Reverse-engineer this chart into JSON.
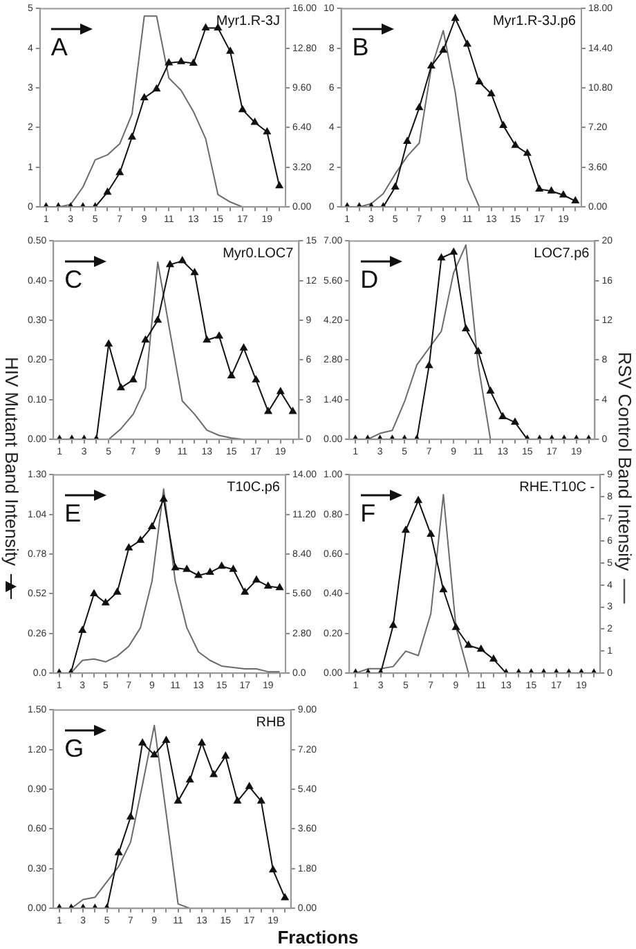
{
  "chart_data": [
    {
      "type": "line",
      "title": "Myr1.R-3J",
      "annotations": [
        "A"
      ],
      "x": [
        1,
        2,
        3,
        4,
        5,
        6,
        7,
        8,
        9,
        10,
        11,
        12,
        13,
        14,
        15,
        16,
        17,
        18,
        19,
        20
      ],
      "xlim": [
        0.5,
        20.5
      ],
      "xticks": [
        1,
        {
          "value": 2,
          "label": null
        },
        3,
        {
          "value": 4,
          "label": null
        },
        5,
        {
          "value": 6,
          "label": null
        },
        7,
        {
          "value": 8,
          "label": null
        },
        9,
        {
          "value": 10,
          "label": null
        },
        11,
        {
          "value": 12,
          "label": null
        },
        13,
        {
          "value": 14,
          "label": null
        },
        15,
        {
          "value": 16,
          "label": null
        },
        17,
        {
          "value": 18,
          "label": null
        },
        19,
        {
          "value": 20,
          "label": null
        }
      ],
      "ylim": [
        0,
        5
      ],
      "yticks": [
        0,
        1,
        2,
        3,
        4,
        5
      ],
      "y2lim": [
        0,
        16
      ],
      "y2ticks": [
        {
          "value": 0,
          "label": "0.00"
        },
        {
          "value": 3.2,
          "label": "3.20"
        },
        {
          "value": 6.4,
          "label": "6.40"
        },
        {
          "value": 9.6,
          "label": "9.60"
        },
        {
          "value": 12.8,
          "label": "12.80"
        },
        {
          "value": 16,
          "label": "16.00"
        }
      ],
      "grid": false,
      "legend": false,
      "series": [
        {
          "color": "#111111",
          "marker": "triangle",
          "values": [
            0,
            0,
            0,
            0,
            0,
            0.37,
            0.86,
            1.76,
            2.75,
            2.97,
            3.63,
            3.66,
            3.62,
            4.51,
            4.51,
            3.92,
            2.45,
            2.13,
            1.89,
            0.53
          ]
        },
        {
          "color": "#6a6a6a",
          "marker": "none",
          "axis": "y2",
          "values": [
            0,
            0,
            0.2,
            1.6,
            3.8,
            4.2,
            5.1,
            7.5,
            15.4,
            15.4,
            10.4,
            9.4,
            7.7,
            5.5,
            1.0,
            0.4,
            0,
            null,
            null,
            null
          ]
        }
      ]
    },
    {
      "type": "line",
      "title": "Myr1.R-3J.p6",
      "annotations": [
        "B"
      ],
      "x": [
        1,
        2,
        3,
        4,
        5,
        6,
        7,
        8,
        9,
        10,
        11,
        12,
        13,
        14,
        15,
        16,
        17,
        18,
        19,
        20
      ],
      "xlim": [
        0.5,
        20.5
      ],
      "xticks": [
        1,
        {
          "value": 2,
          "label": null
        },
        3,
        {
          "value": 4,
          "label": null
        },
        5,
        {
          "value": 6,
          "label": null
        },
        7,
        {
          "value": 8,
          "label": null
        },
        9,
        {
          "value": 10,
          "label": null
        },
        11,
        {
          "value": 12,
          "label": null
        },
        13,
        {
          "value": 14,
          "label": null
        },
        15,
        {
          "value": 16,
          "label": null
        },
        17,
        {
          "value": 18,
          "label": null
        },
        19,
        {
          "value": 20,
          "label": null
        }
      ],
      "ylim": [
        0,
        10
      ],
      "yticks": [
        0,
        2,
        4,
        6,
        8,
        10
      ],
      "y2lim": [
        0,
        18
      ],
      "y2ticks": [
        {
          "value": 0,
          "label": "0.00"
        },
        {
          "value": 3.6,
          "label": "3.60"
        },
        {
          "value": 7.2,
          "label": "7.20"
        },
        {
          "value": 10.8,
          "label": "10.80"
        },
        {
          "value": 14.4,
          "label": "14.40"
        },
        {
          "value": 18,
          "label": "18.00"
        }
      ],
      "grid": false,
      "legend": false,
      "series": [
        {
          "color": "#111111",
          "marker": "triangle",
          "values": [
            0,
            0,
            0,
            0,
            1.0,
            3.3,
            5.0,
            7.1,
            7.9,
            9.5,
            8.2,
            6.3,
            5.7,
            4.1,
            3.1,
            2.7,
            0.9,
            0.8,
            0.6,
            0.3
          ]
        },
        {
          "color": "#6a6a6a",
          "marker": "none",
          "axis": "y2",
          "values": [
            0,
            0,
            0.3,
            1.2,
            3.0,
            4.6,
            5.8,
            12.6,
            16.0,
            10.4,
            2.5,
            0,
            null,
            null,
            null,
            null,
            null,
            null,
            null,
            null
          ]
        }
      ]
    },
    {
      "type": "line",
      "title": "Myr0.LOC7",
      "annotations": [
        "C"
      ],
      "x": [
        1,
        2,
        3,
        4,
        5,
        6,
        7,
        8,
        9,
        10,
        11,
        12,
        13,
        14,
        15,
        16,
        17,
        18,
        19,
        20
      ],
      "xlim": [
        0.5,
        20.5
      ],
      "xticks": [
        1,
        {
          "value": 2,
          "label": null
        },
        3,
        {
          "value": 4,
          "label": null
        },
        5,
        {
          "value": 6,
          "label": null
        },
        7,
        {
          "value": 8,
          "label": null
        },
        9,
        {
          "value": 10,
          "label": null
        },
        11,
        {
          "value": 12,
          "label": null
        },
        13,
        {
          "value": 14,
          "label": null
        },
        15,
        {
          "value": 16,
          "label": null
        },
        17,
        {
          "value": 18,
          "label": null
        },
        19,
        {
          "value": 20,
          "label": null
        }
      ],
      "ylim": [
        0,
        0.5
      ],
      "yticks": [
        {
          "value": 0,
          "label": "0.00"
        },
        {
          "value": 0.1,
          "label": "0.10"
        },
        {
          "value": 0.2,
          "label": "0.20"
        },
        {
          "value": 0.3,
          "label": "0.30"
        },
        {
          "value": 0.4,
          "label": "0.40"
        },
        {
          "value": 0.5,
          "label": "0.50"
        }
      ],
      "y2lim": [
        0,
        15
      ],
      "y2ticks": [
        0,
        3,
        6,
        9,
        12,
        15
      ],
      "grid": false,
      "legend": false,
      "series": [
        {
          "color": "#111111",
          "marker": "triangle",
          "values": [
            0,
            0,
            0,
            0,
            0.24,
            0.13,
            0.15,
            0.25,
            0.3,
            0.44,
            0.45,
            0.42,
            0.25,
            0.26,
            0.16,
            0.23,
            0.15,
            0.07,
            0.12,
            0.07
          ]
        },
        {
          "color": "#6a6a6a",
          "marker": "none",
          "axis": "y2",
          "values": [
            null,
            null,
            null,
            null,
            0,
            0.8,
            1.9,
            3.9,
            13.4,
            8.1,
            2.9,
            1.9,
            0.7,
            0.3,
            0.1,
            0,
            null,
            null,
            null,
            null
          ]
        }
      ]
    },
    {
      "type": "line",
      "title": "LOC7.p6",
      "annotations": [
        "D"
      ],
      "x": [
        1,
        2,
        3,
        4,
        5,
        6,
        7,
        8,
        9,
        10,
        11,
        12,
        13,
        14,
        15,
        16,
        17,
        18,
        19,
        20
      ],
      "xlim": [
        0.5,
        20.5
      ],
      "xticks": [
        1,
        {
          "value": 2,
          "label": null
        },
        3,
        {
          "value": 4,
          "label": null
        },
        5,
        {
          "value": 6,
          "label": null
        },
        7,
        {
          "value": 8,
          "label": null
        },
        9,
        {
          "value": 10,
          "label": null
        },
        11,
        {
          "value": 12,
          "label": null
        },
        13,
        {
          "value": 14,
          "label": null
        },
        15,
        {
          "value": 16,
          "label": null
        },
        17,
        {
          "value": 18,
          "label": null
        },
        19,
        {
          "value": 20,
          "label": null
        }
      ],
      "ylim": [
        0,
        7
      ],
      "yticks": [
        {
          "value": 0,
          "label": "0.00"
        },
        {
          "value": 1.4,
          "label": "1.40"
        },
        {
          "value": 2.8,
          "label": "2.80"
        },
        {
          "value": 4.2,
          "label": "4.20"
        },
        {
          "value": 5.6,
          "label": "5.60"
        },
        {
          "value": 7,
          "label": "7.00"
        }
      ],
      "y2lim": [
        0,
        20
      ],
      "y2ticks": [
        0,
        4,
        8,
        12,
        16,
        20
      ],
      "grid": false,
      "legend": false,
      "series": [
        {
          "color": "#111111",
          "marker": "triangle",
          "values": [
            0,
            0,
            0,
            0,
            0,
            0,
            2.6,
            6.4,
            6.6,
            3.9,
            3.1,
            1.7,
            0.8,
            0.6,
            0,
            0,
            0,
            0,
            0,
            0
          ]
        },
        {
          "color": "#6a6a6a",
          "marker": "none",
          "axis": "y2",
          "values": [
            0,
            0,
            0.6,
            0.9,
            3.8,
            7.5,
            9.2,
            10.9,
            16.8,
            19.6,
            7.5,
            0,
            null,
            null,
            null,
            null,
            null,
            null,
            null,
            null
          ]
        }
      ]
    },
    {
      "type": "line",
      "title": "T10C.p6",
      "annotations": [
        "E"
      ],
      "ylabel": "HIV Mutant Band Intensity",
      "x": [
        1,
        2,
        3,
        4,
        5,
        6,
        7,
        8,
        9,
        10,
        11,
        12,
        13,
        14,
        15,
        16,
        17,
        18,
        19,
        20
      ],
      "xlim": [
        0.5,
        20.5
      ],
      "xticks": [
        1,
        {
          "value": 2,
          "label": null
        },
        3,
        {
          "value": 4,
          "label": null
        },
        5,
        {
          "value": 6,
          "label": null
        },
        7,
        {
          "value": 8,
          "label": null
        },
        9,
        {
          "value": 10,
          "label": null
        },
        11,
        {
          "value": 12,
          "label": null
        },
        13,
        {
          "value": 14,
          "label": null
        },
        15,
        {
          "value": 16,
          "label": null
        },
        17,
        {
          "value": 18,
          "label": null
        },
        19,
        {
          "value": 20,
          "label": null
        }
      ],
      "ylim": [
        0,
        1.3
      ],
      "yticks": [
        {
          "value": 0,
          "label": "0.0"
        },
        0.26,
        0.52,
        0.78,
        1.04,
        {
          "value": 1.3,
          "label": "1.30"
        }
      ],
      "y2lim": [
        0,
        14
      ],
      "y2ticks": [
        {
          "value": 0,
          "label": "0.0"
        },
        {
          "value": 2.8,
          "label": "2.80"
        },
        {
          "value": 5.6,
          "label": "5.60"
        },
        {
          "value": 8.4,
          "label": "8.40"
        },
        {
          "value": 11.2,
          "label": "11.20"
        },
        {
          "value": 14,
          "label": "14.00"
        }
      ],
      "grid": false,
      "legend": false,
      "series": [
        {
          "color": "#111111",
          "marker": "triangle",
          "values": [
            0,
            0,
            0.28,
            0.52,
            0.46,
            0.53,
            0.82,
            0.87,
            0.96,
            1.14,
            0.69,
            0.68,
            0.64,
            0.66,
            0.7,
            0.68,
            0.53,
            0.61,
            0.57,
            0.56
          ]
        },
        {
          "color": "#6a6a6a",
          "marker": "none",
          "axis": "y2",
          "values": [
            null,
            0,
            0.9,
            1.0,
            0.8,
            1.2,
            1.9,
            3.2,
            6.5,
            13.0,
            6.5,
            3.2,
            1.5,
            0.9,
            0.5,
            0.4,
            0.3,
            0.3,
            0.1,
            0.1
          ]
        }
      ]
    },
    {
      "type": "line",
      "title": "RHE.T10C -",
      "annotations": [
        "F"
      ],
      "y2label": "RSV Control Band Intensity",
      "x": [
        1,
        2,
        3,
        4,
        5,
        6,
        7,
        8,
        9,
        10,
        11,
        12,
        13,
        14,
        15,
        16,
        17,
        18,
        19,
        20
      ],
      "xlim": [
        0.5,
        20.5
      ],
      "xticks": [
        1,
        {
          "value": 2,
          "label": null
        },
        3,
        {
          "value": 4,
          "label": null
        },
        5,
        {
          "value": 6,
          "label": null
        },
        7,
        {
          "value": 8,
          "label": null
        },
        9,
        {
          "value": 10,
          "label": null
        },
        11,
        {
          "value": 12,
          "label": null
        },
        13,
        {
          "value": 14,
          "label": null
        },
        15,
        {
          "value": 16,
          "label": null
        },
        17,
        {
          "value": 18,
          "label": null
        },
        19,
        {
          "value": 20,
          "label": null
        }
      ],
      "ylim": [
        0,
        1
      ],
      "yticks": [
        {
          "value": 0,
          "label": "0.00"
        },
        {
          "value": 0.2,
          "label": "0.20"
        },
        {
          "value": 0.4,
          "label": "0.40"
        },
        {
          "value": 0.6,
          "label": "0.60"
        },
        {
          "value": 0.8,
          "label": "0.80"
        },
        {
          "value": 1,
          "label": "1.00"
        }
      ],
      "y2lim": [
        0,
        9
      ],
      "y2ticks": [
        0,
        1,
        2,
        3,
        4,
        5,
        6,
        7,
        8,
        9
      ],
      "grid": false,
      "legend": false,
      "series": [
        {
          "color": "#111111",
          "marker": "triangle",
          "values": [
            0,
            0,
            0,
            0.24,
            0.72,
            0.87,
            0.7,
            0.42,
            0.23,
            0.14,
            0.12,
            0.07,
            0,
            0,
            0,
            0,
            0,
            0,
            0,
            0
          ]
        },
        {
          "color": "#6a6a6a",
          "marker": "none",
          "axis": "y2",
          "values": [
            0,
            0.2,
            0.2,
            0.3,
            1.0,
            0.8,
            2.7,
            8.1,
            2.1,
            0,
            null,
            null,
            null,
            null,
            null,
            null,
            null,
            null,
            null,
            null
          ]
        }
      ]
    },
    {
      "type": "line",
      "title": "RHB",
      "annotations": [
        "G"
      ],
      "xlabel": "Fractions",
      "x": [
        1,
        2,
        3,
        4,
        5,
        6,
        7,
        8,
        9,
        10,
        11,
        12,
        13,
        14,
        15,
        16,
        17,
        18,
        19,
        20
      ],
      "xlim": [
        0.5,
        20.5
      ],
      "xticks": [
        1,
        {
          "value": 2,
          "label": null
        },
        3,
        {
          "value": 4,
          "label": null
        },
        5,
        {
          "value": 6,
          "label": null
        },
        7,
        {
          "value": 8,
          "label": null
        },
        9,
        {
          "value": 10,
          "label": null
        },
        11,
        {
          "value": 12,
          "label": null
        },
        13,
        {
          "value": 14,
          "label": null
        },
        15,
        {
          "value": 16,
          "label": null
        },
        17,
        {
          "value": 18,
          "label": null
        },
        19,
        {
          "value": 20,
          "label": null
        }
      ],
      "ylim": [
        0,
        1.5
      ],
      "yticks": [
        {
          "value": 0,
          "label": "0.00"
        },
        {
          "value": 0.3,
          "label": "0.30"
        },
        {
          "value": 0.6,
          "label": "0.60"
        },
        {
          "value": 0.9,
          "label": "0.90"
        },
        {
          "value": 1.2,
          "label": "1.20"
        },
        {
          "value": 1.5,
          "label": "1.50"
        }
      ],
      "y2lim": [
        0,
        9
      ],
      "y2ticks": [
        {
          "value": 0,
          "label": "0.00"
        },
        {
          "value": 1.8,
          "label": "1.80"
        },
        {
          "value": 3.6,
          "label": "3.60"
        },
        {
          "value": 5.4,
          "label": "5.40"
        },
        {
          "value": 7.2,
          "label": "7.20"
        },
        {
          "value": 9,
          "label": "9.00"
        }
      ],
      "grid": false,
      "legend": false,
      "series": [
        {
          "color": "#111111",
          "marker": "triangle",
          "values": [
            0,
            0,
            0,
            0,
            0,
            0.42,
            0.69,
            1.25,
            1.16,
            1.27,
            0.81,
            0.97,
            1.25,
            1.01,
            1.15,
            0.81,
            0.92,
            0.81,
            0.29,
            0.08
          ]
        },
        {
          "color": "#6a6a6a",
          "marker": "none",
          "axis": "y2",
          "values": [
            0,
            0,
            0.4,
            0.5,
            1.2,
            1.9,
            3.0,
            5.6,
            8.3,
            4.3,
            0.2,
            0,
            null,
            null,
            null,
            null,
            null,
            null,
            null,
            null
          ]
        }
      ]
    }
  ]
}
